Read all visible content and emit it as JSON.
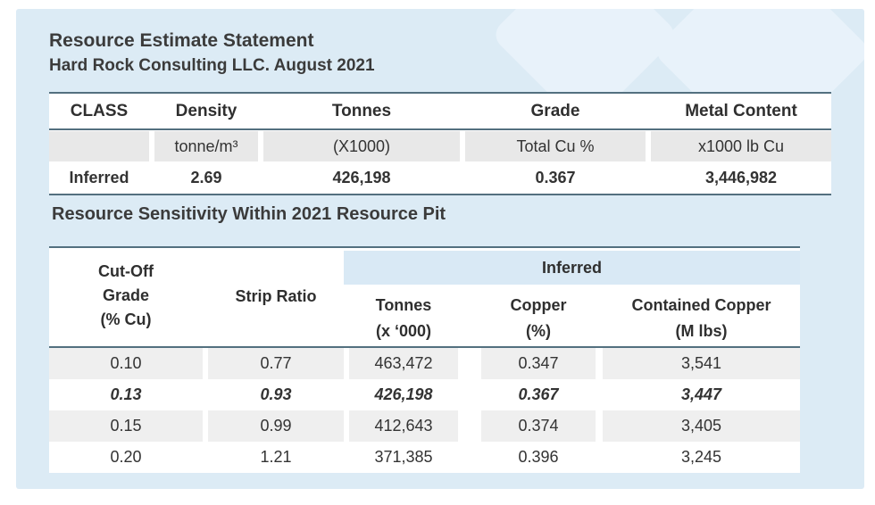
{
  "page": {
    "title": "Resource Estimate Statement",
    "subtitle": "Hard Rock Consulting LLC. August 2021"
  },
  "estimate_table": {
    "headers": [
      "CLASS",
      "Density",
      "Tonnes",
      "Grade",
      "Metal Content"
    ],
    "units": [
      "",
      "tonne/m³",
      "(X1000)",
      "Total Cu %",
      "x1000 lb Cu"
    ],
    "rows": [
      [
        "Inferred",
        "2.69",
        "426,198",
        "0.367",
        "3,446,982"
      ]
    ]
  },
  "sensitivity": {
    "title": "Resource Sensitivity Within 2021 Resource Pit",
    "group_header": "Inferred",
    "col1_header_lines": [
      "Cut-Off",
      "Grade",
      "(% Cu)"
    ],
    "col2_header": "Strip Ratio",
    "sub_headers": [
      [
        "Tonnes",
        "(x ‘000)"
      ],
      [
        "Copper",
        "(%)"
      ],
      [
        "Contained Copper",
        "(M lbs)"
      ]
    ],
    "rows": [
      {
        "values": [
          "0.10",
          "0.77",
          "463,472",
          "0.347",
          "3,541"
        ],
        "emphasis": false
      },
      {
        "values": [
          "0.13",
          "0.93",
          "426,198",
          "0.367",
          "3,447"
        ],
        "emphasis": true
      },
      {
        "values": [
          "0.15",
          "0.99",
          "412,643",
          "0.374",
          "3,405"
        ],
        "emphasis": false
      },
      {
        "values": [
          "0.20",
          "1.21",
          "371,385",
          "0.396",
          "3,245"
        ],
        "emphasis": false
      }
    ]
  },
  "colors": {
    "panel_background": "#dcebf5",
    "watermark": "#e8f2fa",
    "rule": "#53707f",
    "units_row_gray": "#e8e8e8",
    "stripe_gray": "#efefef",
    "inferred_band": "#d9e9f5",
    "text": "#333333"
  }
}
